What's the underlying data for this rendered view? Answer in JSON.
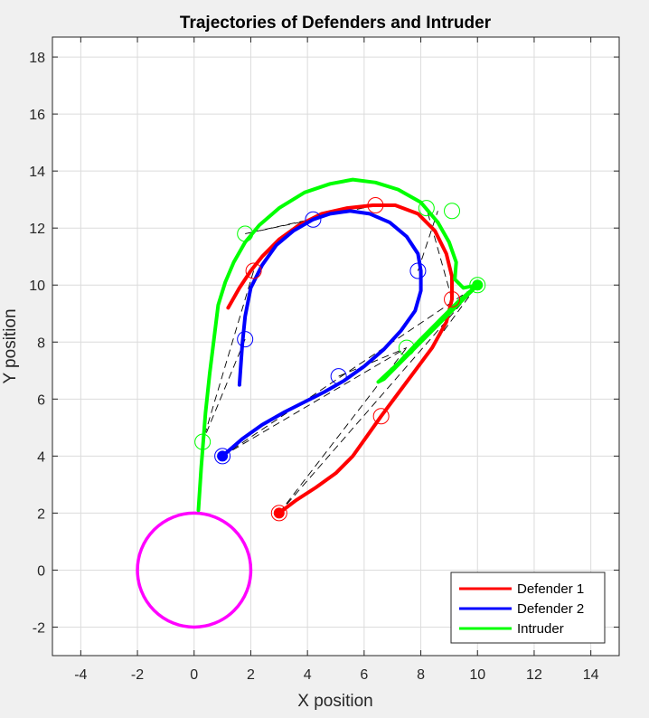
{
  "chart_data": {
    "type": "line",
    "title": "Trajectories of Defenders and Intruder",
    "xlabel": "X position",
    "ylabel": "Y position",
    "xlim": [
      -5,
      15
    ],
    "ylim": [
      -3,
      18.7
    ],
    "xticks": [
      -4,
      -2,
      0,
      2,
      4,
      6,
      8,
      10,
      12,
      14
    ],
    "yticks": [
      -2,
      0,
      2,
      4,
      6,
      8,
      10,
      12,
      14,
      16,
      18
    ],
    "grid": true,
    "legend_position": "bottom-right",
    "colors": {
      "defender1": "#ff0000",
      "defender2": "#0000ff",
      "intruder": "#00ff00",
      "target": "#ff00ff",
      "link": "#000000"
    },
    "series": [
      {
        "name": "Defender 1",
        "color": "#ff0000",
        "points": [
          [
            3,
            2
          ],
          [
            3.6,
            2.45
          ],
          [
            4.3,
            2.9
          ],
          [
            5,
            3.4
          ],
          [
            5.6,
            4
          ],
          [
            6.1,
            4.7
          ],
          [
            6.6,
            5.4
          ],
          [
            7.2,
            6.2
          ],
          [
            7.8,
            7
          ],
          [
            8.4,
            7.8
          ],
          [
            8.9,
            8.7
          ],
          [
            9.1,
            9.5
          ],
          [
            9.1,
            10.3
          ],
          [
            8.9,
            11.1
          ],
          [
            8.5,
            11.9
          ],
          [
            7.9,
            12.5
          ],
          [
            7.1,
            12.8
          ],
          [
            6.3,
            12.8
          ],
          [
            5.4,
            12.7
          ],
          [
            4.5,
            12.5
          ],
          [
            3.7,
            12.1
          ],
          [
            3,
            11.6
          ],
          [
            2.4,
            11
          ],
          [
            2,
            10.5
          ],
          [
            1.6,
            9.9
          ],
          [
            1.2,
            9.2
          ]
        ],
        "markers": [
          [
            3,
            2
          ],
          [
            6.6,
            5.4
          ],
          [
            9.1,
            9.5
          ],
          [
            6.4,
            12.8
          ],
          [
            2.1,
            10.5
          ]
        ]
      },
      {
        "name": "Defender 2",
        "color": "#0000ff",
        "points": [
          [
            1,
            4
          ],
          [
            1.7,
            4.6
          ],
          [
            2.4,
            5.1
          ],
          [
            3.2,
            5.55
          ],
          [
            4,
            5.95
          ],
          [
            4.6,
            6.25
          ],
          [
            5.3,
            6.65
          ],
          [
            6,
            7.15
          ],
          [
            6.7,
            7.75
          ],
          [
            7.3,
            8.4
          ],
          [
            7.8,
            9.1
          ],
          [
            8,
            9.8
          ],
          [
            8,
            10.5
          ],
          [
            7.9,
            11.1
          ],
          [
            7.5,
            11.7
          ],
          [
            6.9,
            12.2
          ],
          [
            6.2,
            12.5
          ],
          [
            5.5,
            12.6
          ],
          [
            4.8,
            12.5
          ],
          [
            4.2,
            12.3
          ],
          [
            3.5,
            11.9
          ],
          [
            2.9,
            11.4
          ],
          [
            2.4,
            10.7
          ],
          [
            2,
            9.9
          ],
          [
            1.8,
            8.9
          ],
          [
            1.7,
            7.9
          ],
          [
            1.6,
            6.5
          ]
        ],
        "markers": [
          [
            1,
            4
          ],
          [
            5.1,
            6.8
          ],
          [
            7.9,
            10.5
          ],
          [
            4.2,
            12.3
          ],
          [
            1.8,
            8.1
          ]
        ]
      },
      {
        "name": "Intruder",
        "color": "#00ff00",
        "points": [
          [
            0.15,
            2.1
          ],
          [
            0.25,
            3.6
          ],
          [
            0.4,
            5.5
          ],
          [
            0.55,
            6.9
          ],
          [
            0.7,
            8.1
          ],
          [
            0.85,
            9.3
          ],
          [
            1.1,
            10.1
          ],
          [
            1.4,
            10.8
          ],
          [
            1.8,
            11.5
          ],
          [
            2.3,
            12.1
          ],
          [
            3,
            12.7
          ],
          [
            3.9,
            13.25
          ],
          [
            4.8,
            13.55
          ],
          [
            5.6,
            13.7
          ],
          [
            6.4,
            13.6
          ],
          [
            7.2,
            13.35
          ],
          [
            8,
            12.9
          ],
          [
            8.6,
            12.2
          ],
          [
            9,
            11.5
          ],
          [
            9.25,
            10.8
          ],
          [
            9.2,
            10.2
          ],
          [
            9.5,
            9.9
          ],
          [
            10,
            10
          ],
          [
            9.3,
            9.4
          ],
          [
            8.6,
            8.7
          ],
          [
            7.9,
            8
          ],
          [
            7.2,
            7.25
          ],
          [
            6.5,
            6.6
          ],
          [
            6.7,
            6.7
          ],
          [
            7.4,
            7.4
          ],
          [
            8.1,
            8.1
          ],
          [
            8.8,
            8.8
          ],
          [
            9.5,
            9.5
          ],
          [
            10,
            10
          ]
        ],
        "markers": [
          [
            10,
            10
          ],
          [
            7.5,
            7.8
          ],
          [
            9.1,
            12.6
          ],
          [
            8.2,
            12.7
          ],
          [
            1.8,
            11.8
          ],
          [
            0.3,
            4.5
          ]
        ]
      }
    ],
    "target_circle": {
      "center": [
        0,
        0
      ],
      "radius": 2
    },
    "connections": [
      [
        [
          3,
          2
        ],
        [
          10,
          10
        ]
      ],
      [
        [
          3,
          2
        ],
        [
          7.5,
          7.8
        ]
      ],
      [
        [
          1,
          4
        ],
        [
          10,
          10
        ]
      ],
      [
        [
          1,
          4
        ],
        [
          7.5,
          7.8
        ]
      ],
      [
        [
          6.6,
          5.4
        ],
        [
          10,
          10
        ]
      ],
      [
        [
          5.1,
          6.8
        ],
        [
          7.5,
          7.8
        ]
      ],
      [
        [
          9.1,
          9.5
        ],
        [
          8.2,
          12.7
        ]
      ],
      [
        [
          7.9,
          10.5
        ],
        [
          8.6,
          12.6
        ]
      ],
      [
        [
          6.4,
          12.8
        ],
        [
          1.8,
          11.8
        ]
      ],
      [
        [
          4.2,
          12.3
        ],
        [
          1.8,
          11.8
        ]
      ],
      [
        [
          2.1,
          10.5
        ],
        [
          0.3,
          4.5
        ]
      ],
      [
        [
          1.8,
          8.1
        ],
        [
          0.3,
          4.5
        ]
      ]
    ]
  }
}
